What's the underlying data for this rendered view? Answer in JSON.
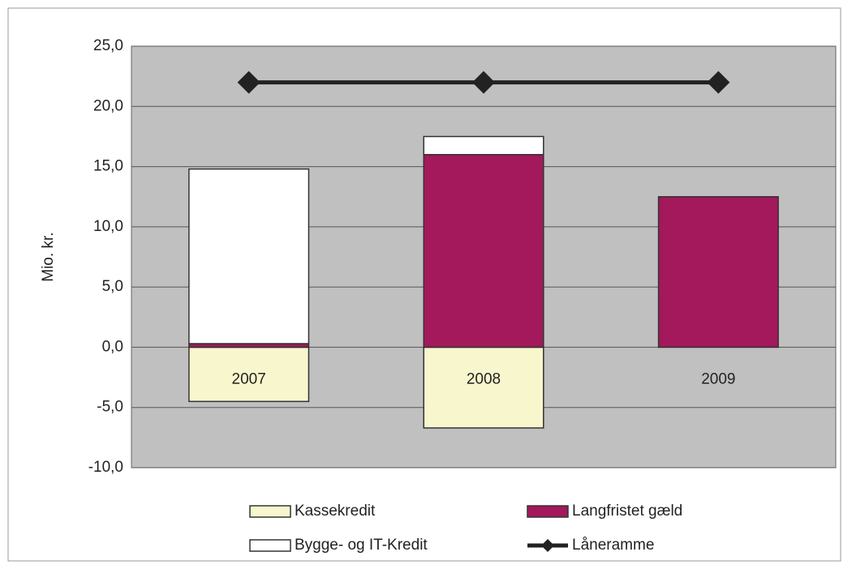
{
  "chart_data": {
    "type": "bar",
    "stacked": true,
    "y_label": "Mio. kr.",
    "categories": [
      "2007",
      "2008",
      "2009"
    ],
    "series": [
      {
        "name": "Kassekredit",
        "color": "#f8f6cc",
        "values": [
          -4.5,
          -6.7,
          0
        ]
      },
      {
        "name": "Langfristet gæld",
        "color": "#a3195b",
        "values": [
          0.3,
          16.0,
          12.5
        ]
      },
      {
        "name": "Bygge- og IT-Kredit",
        "color": "#ffffff",
        "values": [
          14.5,
          1.5,
          0
        ]
      },
      {
        "name": "Låneramme",
        "type": "line",
        "color": "#222222",
        "values": [
          22.0,
          22.0,
          22.0
        ]
      }
    ],
    "ylim": [
      -10,
      25
    ],
    "yticks": [
      {
        "value": -10,
        "label": "-10,0"
      },
      {
        "value": -5,
        "label": "-5,0"
      },
      {
        "value": 0,
        "label": "0,0"
      },
      {
        "value": 5,
        "label": "5,0"
      },
      {
        "value": 10,
        "label": "10,0"
      },
      {
        "value": 15,
        "label": "15,0"
      },
      {
        "value": 20,
        "label": "20,0"
      },
      {
        "value": 25,
        "label": "25,0"
      }
    ],
    "grid": true,
    "legend": "bottom"
  }
}
